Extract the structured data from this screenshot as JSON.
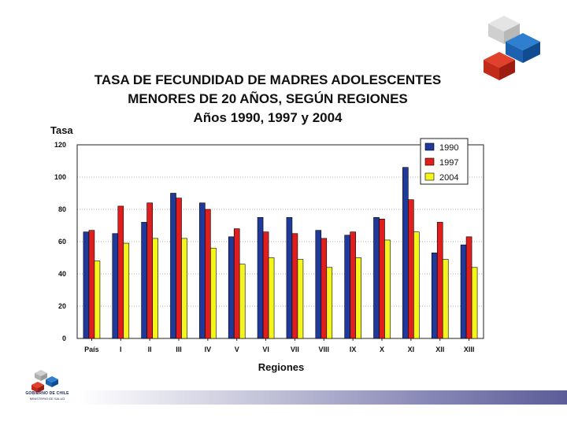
{
  "slide": {
    "title_line1": "TASA DE FECUNDIDAD DE MADRES ADOLESCENTES",
    "title_line2": "MENORES DE 20 AÑOS, SEGÚN REGIONES",
    "subtitle": "Años 1990, 1997 y 2004"
  },
  "branding": {
    "corner_logo_icon": "chile-government-cubes-icon",
    "footer_logo_icon": "gobierno-de-chile-logo-icon",
    "footer_name": "GOBIERNO DE CHILE",
    "footer_ministry": "MINISTERIO DE SALUD"
  },
  "chart_data": {
    "type": "bar",
    "title": "",
    "ylabel": "Tasa",
    "xlabel": "Regiones",
    "ylim": [
      0,
      120
    ],
    "yticks": [
      0,
      20,
      40,
      60,
      80,
      100,
      120
    ],
    "grid": true,
    "legend_position": "top-right",
    "categories": [
      "País",
      "I",
      "II",
      "III",
      "IV",
      "V",
      "VI",
      "VII",
      "VIII",
      "IX",
      "X",
      "XI",
      "XII",
      "XIII"
    ],
    "series": [
      {
        "name": "1990",
        "color": "#1f3a9a",
        "values": [
          66,
          65,
          72,
          90,
          84,
          63,
          75,
          75,
          67,
          64,
          75,
          106,
          53,
          58
        ]
      },
      {
        "name": "1997",
        "color": "#e01e1e",
        "values": [
          67,
          82,
          84,
          87,
          80,
          68,
          66,
          65,
          62,
          66,
          74,
          86,
          72,
          63
        ]
      },
      {
        "name": "2004",
        "color": "#f5f51e",
        "values": [
          48,
          59,
          62,
          62,
          56,
          46,
          50,
          49,
          44,
          50,
          61,
          66,
          49,
          44
        ]
      }
    ]
  }
}
